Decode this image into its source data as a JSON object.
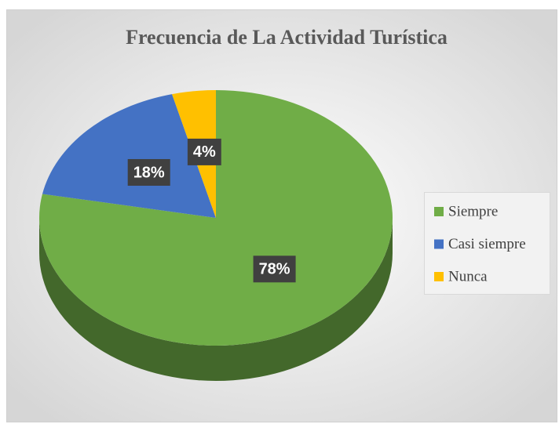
{
  "chart_data": {
    "type": "pie",
    "title": "Frecuencia de La Actividad Turística",
    "categories": [
      "Siempre",
      "Casi siempre",
      "Nunca"
    ],
    "values": [
      78,
      18,
      4
    ],
    "value_labels": [
      "78%",
      "18%",
      "4%"
    ],
    "colors": [
      "#70ad47",
      "#4472c4",
      "#ffc000"
    ],
    "legend": "right"
  }
}
